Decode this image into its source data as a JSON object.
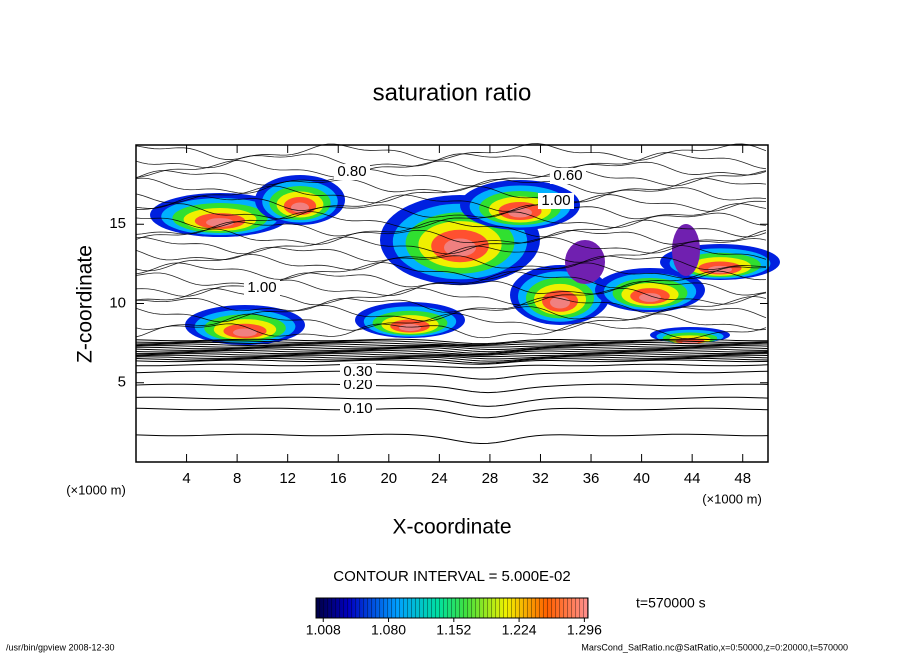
{
  "chart_data": {
    "type": "contour",
    "title": "saturation ratio",
    "xlabel": "X-coordinate",
    "ylabel": "Z-coordinate",
    "x_unit": "(×1000 m)",
    "y_unit": "(×1000 m)",
    "xlim": [
      0,
      50
    ],
    "xticks": [
      4,
      8,
      12,
      16,
      20,
      24,
      28,
      32,
      36,
      40,
      44,
      48
    ],
    "ylim": [
      0,
      20
    ],
    "yticks": [
      5,
      10,
      15
    ],
    "contour_interval": "CONTOUR INTERVAL = 5.000E-02",
    "time_label": "t=570000 s",
    "colorbar": {
      "lim": [
        1.0,
        1.3
      ],
      "ticks": [
        1.008,
        {
          "value": 1.08,
          "label": "1.080"
        },
        1.152,
        1.224,
        1.296
      ]
    },
    "contour_labels": [
      {
        "value": 0.1,
        "label": "0.10"
      },
      {
        "value": 0.2,
        "label": "0.20"
      },
      {
        "value": 0.3,
        "label": "0.30"
      },
      {
        "value": 0.6,
        "label": "0.60"
      },
      {
        "value": 0.8,
        "label": "0.80"
      },
      {
        "value": 1.0,
        "label": "1.00"
      },
      {
        "value": 1.0,
        "label": "1.00"
      }
    ],
    "footer_left": "/usr/bin/gpview   2008-12-30",
    "footer_right": "MarsCond_SatRatio.nc@SatRatio,x=0:50000,z=0:20000,t=570000"
  }
}
